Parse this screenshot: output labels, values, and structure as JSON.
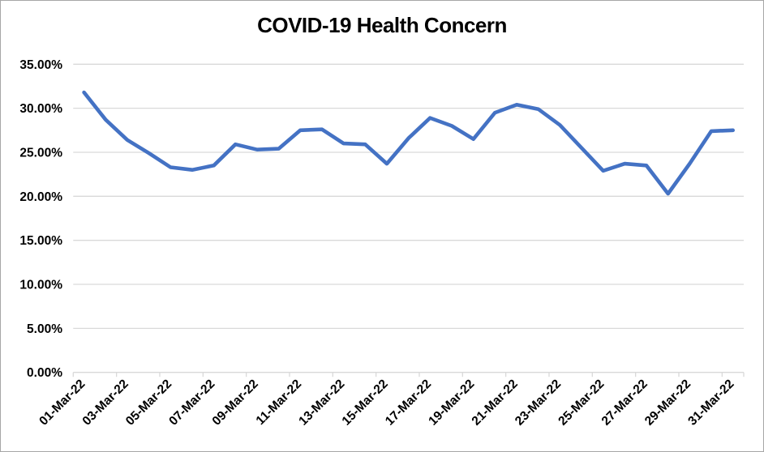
{
  "window": {
    "background": "#ffffff",
    "border_color": "#a6a6a6"
  },
  "chart_data": {
    "type": "line",
    "title": "COVID-19 Health Concern",
    "x": [
      "01-Mar-22",
      "02-Mar-22",
      "03-Mar-22",
      "04-Mar-22",
      "05-Mar-22",
      "06-Mar-22",
      "07-Mar-22",
      "08-Mar-22",
      "09-Mar-22",
      "10-Mar-22",
      "11-Mar-22",
      "12-Mar-22",
      "13-Mar-22",
      "14-Mar-22",
      "15-Mar-22",
      "16-Mar-22",
      "17-Mar-22",
      "18-Mar-22",
      "19-Mar-22",
      "20-Mar-22",
      "21-Mar-22",
      "22-Mar-22",
      "23-Mar-22",
      "24-Mar-22",
      "25-Mar-22",
      "26-Mar-22",
      "27-Mar-22",
      "28-Mar-22",
      "29-Mar-22",
      "30-Mar-22",
      "31-Mar-22"
    ],
    "series": [
      {
        "name": "COVID-19 Health Concern",
        "values": [
          31.8,
          28.7,
          26.4,
          24.9,
          23.3,
          23.0,
          23.5,
          25.9,
          25.3,
          25.4,
          27.5,
          27.6,
          26.0,
          25.9,
          23.7,
          26.6,
          28.9,
          28.0,
          26.5,
          29.5,
          30.4,
          29.9,
          28.1,
          25.5,
          22.9,
          23.7,
          23.5,
          20.3,
          23.7,
          27.4,
          27.5
        ]
      }
    ],
    "ylim": [
      0,
      35
    ],
    "y_tick_values": [
      0,
      5,
      10,
      15,
      20,
      25,
      30,
      35
    ],
    "y_tick_labels": [
      "0.00%",
      "5.00%",
      "10.00%",
      "15.00%",
      "20.00%",
      "25.00%",
      "30.00%",
      "35.00%"
    ],
    "x_tick_label_interval": 2,
    "x_labels_shown": [
      "01-Mar-22",
      "03-Mar-22",
      "05-Mar-22",
      "07-Mar-22",
      "09-Mar-22",
      "11-Mar-22",
      "13-Mar-22",
      "15-Mar-22",
      "17-Mar-22",
      "19-Mar-22",
      "21-Mar-22",
      "23-Mar-22",
      "25-Mar-22",
      "27-Mar-22",
      "29-Mar-22",
      "31-Mar-22"
    ],
    "legend": "none",
    "grid": "horizontal",
    "line_color": "#4472C4",
    "gridline_color": "#D9D9D9",
    "axis_color": "#D9D9D9",
    "text_color": "#000000"
  }
}
